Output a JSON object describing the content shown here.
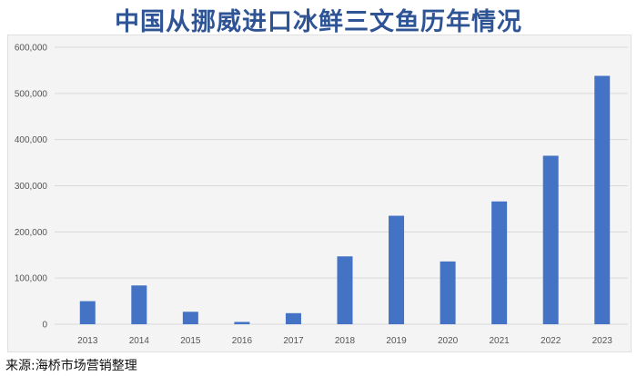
{
  "title": "中国从挪威进口冰鲜三文鱼历年情况",
  "source": "来源:海桥市场营销整理",
  "colors": {
    "bar": "#4472c4",
    "title": "#2f5496",
    "grid": "#d9d9d9"
  },
  "chart_data": {
    "type": "bar",
    "categories": [
      "2013",
      "2014",
      "2015",
      "2016",
      "2017",
      "2018",
      "2019",
      "2020",
      "2021",
      "2022",
      "2023"
    ],
    "values": [
      50000,
      84000,
      27000,
      5000,
      24000,
      147000,
      235000,
      136000,
      266000,
      365000,
      538000
    ],
    "ylim": [
      0,
      600000
    ],
    "yticks": [
      0,
      100000,
      200000,
      300000,
      400000,
      500000,
      600000
    ],
    "ytick_labels": [
      "0",
      "100,000",
      "200,000",
      "300,000",
      "400,000",
      "500,000",
      "600,000"
    ],
    "grid": true,
    "legend": "none"
  }
}
